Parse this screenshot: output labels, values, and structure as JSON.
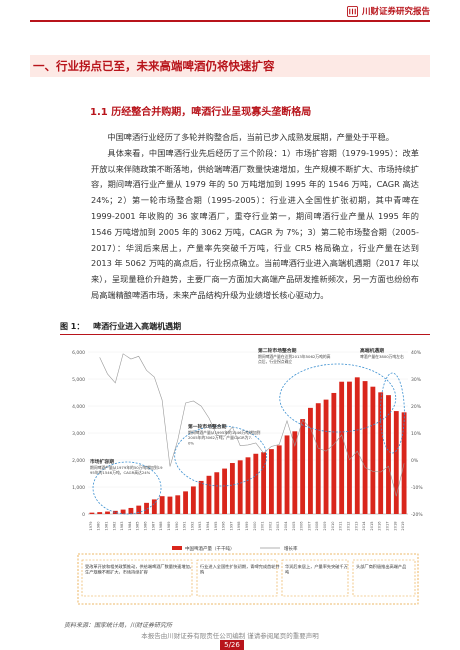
{
  "header": {
    "brand": "川财证券研究报告"
  },
  "section": {
    "h1": "一、行业拐点已至，未来高端啤酒仍将快速扩容",
    "h2": "1.1 历经整合并购期，啤酒行业呈现寡头垄断格局"
  },
  "paragraphs": [
    "中国啤酒行业经历了多轮并购整合后，当前已步入成熟发展期，产量处于平稳。",
    "具体来看，中国啤酒行业先后经历了三个阶段：1）市场扩容期（1979-1995）：改革开放以来伴随政策不断落地，供给端啤酒厂数量快速增加，生产规模不断扩大、市场持续扩容，期间啤酒行业产量从 1979 年的 50 万吨增加到 1995 年的 1546 万吨，CAGR 高达 24%；2）第一轮市场整合期（1995-2005）：行业进入全国性扩张初期，其中青啤在 1999-2001 年收购的 36 家啤酒厂，重夺行业第一，期间啤酒行业产量从 1995 年的 1546 万吨增加到 2005 年的 3062 万吨，CAGR 为 7%；3）第二轮市场整合期（2005-2017）：华润后来居上，产量率先突破千万吨，行业 CR5 格局确立，行业产量在达到 2013 年 5062 万吨的高点后，行业拐点确立。当前啤酒行业进入高端机遇期（2017 年以来），呈现量稳价升趋势，主要厂商一方面加大高端产品研发推新频次，另一方面也纷纷布局高端精酿啤酒市场，未来产品结构升级为业绩增长核心驱动力。"
  ],
  "figure": {
    "label": "图 1：",
    "title": "啤酒行业进入高端机遇期",
    "source": "资料来源：国家统计局，川财证券研究所"
  },
  "chart_data": {
    "type": "bar",
    "categories": [
      "1979",
      "1980",
      "1981",
      "1982",
      "1983",
      "1984",
      "1985",
      "1986",
      "1987",
      "1988",
      "1989",
      "1990",
      "1991",
      "1992",
      "1993",
      "1994",
      "1995",
      "1996",
      "1997",
      "1998",
      "1999",
      "2000",
      "2001",
      "2002",
      "2003",
      "2004",
      "2005",
      "2006",
      "2007",
      "2008",
      "2009",
      "2010",
      "2011",
      "2012",
      "2013",
      "2014",
      "2015",
      "2016",
      "2017",
      "2018",
      "2019"
    ],
    "values": [
      50,
      69,
      91,
      117,
      163,
      224,
      310,
      413,
      540,
      660,
      644,
      692,
      838,
      1021,
      1225,
      1415,
      1546,
      1682,
      1888,
      1988,
      2099,
      2231,
      2288,
      2403,
      2541,
      2910,
      3062,
      3515,
      3931,
      4103,
      4236,
      4483,
      4899,
      4902,
      5062,
      4922,
      4715,
      4506,
      4402,
      3812,
      3765
    ],
    "ylim": [
      0,
      6000
    ],
    "yticks": [
      "6,000",
      "5,000",
      "4,000",
      "3,000",
      "2,000",
      "1,000",
      "0"
    ],
    "yticks_right": [
      "40%",
      "30%",
      "20%",
      "10%",
      "0%",
      "-10%",
      "-20%"
    ],
    "legend": {
      "bars": "中国啤酒产量（千千吨）",
      "line": "增长率"
    },
    "annotations": [
      {
        "title": "市场扩容期",
        "text": "期间啤酒产量从1979年的50万吨增加到1995年的1546万吨，CAGR高达24%"
      },
      {
        "title": "第一轮市场整合期",
        "text": "期间啤酒产量从1995年的1546万吨增加到2005年的3062万吨，产量CAGR为7.0%"
      },
      {
        "title": "第二轮市场整合期",
        "text": "期间啤酒产量在达到2013年5062万吨的高点后，行业拐点确立"
      },
      {
        "title": "高端机遇期",
        "text": "啤酒产量在3800万吨左右"
      }
    ],
    "phase_notes": [
      "受改革开放和相关政策推动，供给端啤酒厂数量快速增加，生产规模不断扩大，市场持续扩容",
      "行业进入全国性扩张初期，青啤完成首轮并购",
      "华润后来居上，产量率先突破千万吨",
      "头部厂商积极推出高端产品"
    ]
  },
  "footer": {
    "disclaimer": "本报告由川财证券有限责任公司编制 谨请参阅尾页的重要声明",
    "page": "5/26"
  },
  "colors": {
    "accent": "#b8141b",
    "bar": "#d9261c",
    "band": "#fde9e5",
    "dash": "#e8a33a",
    "ellipse": "#3a8fd0"
  }
}
